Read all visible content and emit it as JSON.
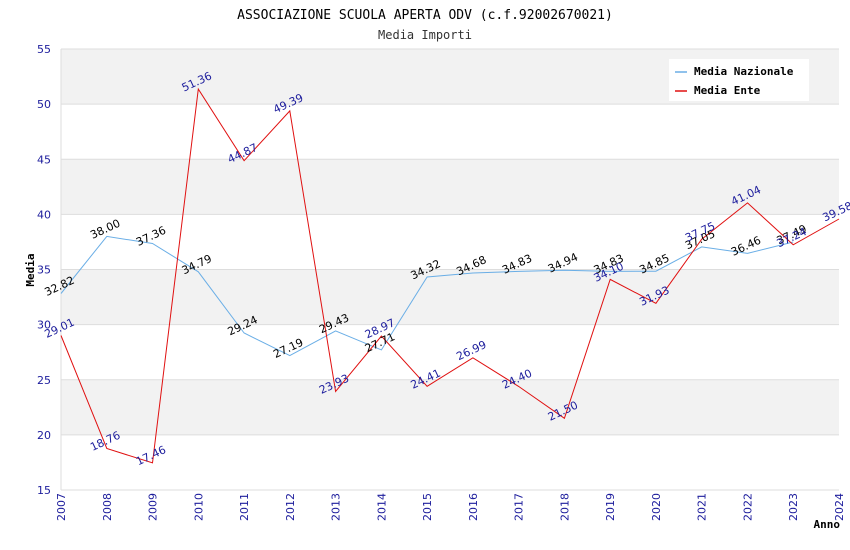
{
  "chart_data": {
    "type": "line",
    "title": "ASSOCIAZIONE SCUOLA APERTA ODV (c.f.92002670021)",
    "subtitle": "Media Importi",
    "xlabel": "Anno",
    "ylabel": "Media",
    "ylim": [
      15,
      55
    ],
    "yticks": [
      15,
      20,
      25,
      30,
      35,
      40,
      45,
      50,
      55
    ],
    "categories": [
      "2007",
      "2008",
      "2009",
      "2010",
      "2011",
      "2012",
      "2013",
      "2014",
      "2015",
      "2016",
      "2017",
      "2018",
      "2019",
      "2020",
      "2021",
      "2022",
      "2023",
      "2024"
    ],
    "legend_position": "top-right",
    "grid": true,
    "series": [
      {
        "name": "Media Nazionale",
        "color": "#6aaee6",
        "values": [
          32.82,
          38.0,
          37.36,
          34.79,
          29.24,
          27.19,
          29.43,
          27.71,
          34.32,
          34.68,
          34.83,
          34.94,
          34.83,
          34.85,
          37.05,
          36.46,
          37.49,
          null
        ],
        "labels": [
          "32.82",
          "38.00",
          "37.36",
          "34.79",
          "29.24",
          "27.19",
          "29.43",
          "27.71",
          "34.32",
          "34.68",
          "34.83",
          "34.94",
          "34.83",
          "34.85",
          "37.05",
          "36.46",
          "37.49",
          ""
        ]
      },
      {
        "name": "Media Ente",
        "color": "#e01010",
        "values": [
          29.01,
          18.76,
          17.46,
          51.36,
          44.87,
          49.39,
          23.93,
          28.97,
          24.41,
          26.99,
          24.4,
          21.5,
          34.1,
          31.93,
          37.75,
          41.04,
          37.24,
          39.58
        ],
        "labels": [
          "29.01",
          "18.76",
          "17.46",
          "51.36",
          "44.87",
          "49.39",
          "23.93",
          "28.97",
          "24.41",
          "26.99",
          "24.40",
          "21.50",
          "34.10",
          "31.93",
          "37.75",
          "41.04",
          "37.24",
          "39.58"
        ]
      }
    ]
  }
}
